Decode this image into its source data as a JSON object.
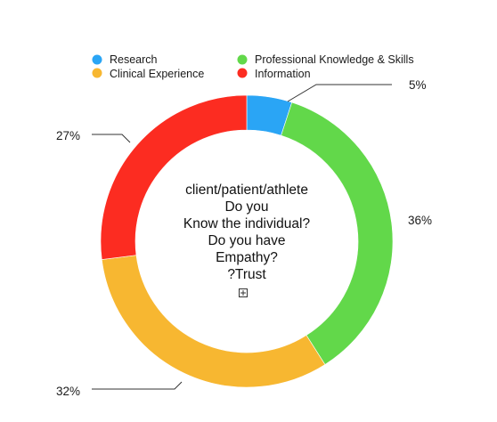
{
  "chart_data": {
    "type": "pie",
    "variant": "donut",
    "categories": [
      "Research",
      "Professional Knowledge & Skills",
      "Clinical Experience",
      "Information"
    ],
    "values": [
      5,
      36,
      32,
      27
    ],
    "value_labels": [
      "5%",
      "36%",
      "32%",
      "27%"
    ],
    "colors": [
      "#2aa5f5",
      "#62d84a",
      "#f7b731",
      "#fc2c21"
    ],
    "legend": {
      "placement": "top",
      "entries": [
        {
          "label": "Research",
          "color": "#2aa5f5"
        },
        {
          "label": "Clinical Experience",
          "color": "#f7b731"
        },
        {
          "label": "Professional Knowledge & Skills",
          "color": "#62d84a"
        },
        {
          "label": "Information",
          "color": "#fc2c21"
        }
      ]
    },
    "center_text": [
      "client/patient/athlete",
      "Do you",
      "Know the individual?",
      "Do you have",
      "Empathy?",
      "?Trust"
    ],
    "start_angle_deg": 0,
    "direction": "clockwise"
  }
}
